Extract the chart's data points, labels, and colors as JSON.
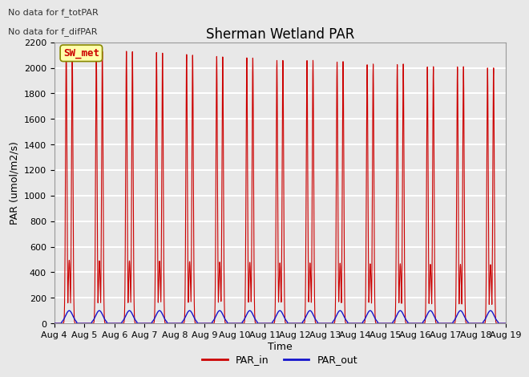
{
  "title": "Sherman Wetland PAR",
  "ylabel": "PAR (umol/m2/s)",
  "xlabel": "Time",
  "ylim": [
    0,
    2200
  ],
  "xlim_days": [
    0,
    15
  ],
  "x_tick_labels": [
    "Aug 4",
    "Aug 5",
    "Aug 6",
    "Aug 7",
    "Aug 8",
    "Aug 9",
    "Aug 10",
    "Aug 11",
    "Aug 12",
    "Aug 13",
    "Aug 14",
    "Aug 15",
    "Aug 16",
    "Aug 17",
    "Aug 18",
    "Aug 19"
  ],
  "par_in_peaks": [
    2150,
    2130,
    2130,
    2120,
    2105,
    2090,
    2080,
    2060,
    2060,
    2050,
    2030,
    2030,
    2010,
    2010,
    2000
  ],
  "par_out_peak": 100,
  "plot_bgcolor": "#e8e8e8",
  "axes_bgcolor": "#e8e8e8",
  "grid_color": "white",
  "legend_label_in": "PAR_in",
  "legend_label_out": "PAR_out",
  "color_in": "#cc0000",
  "color_out": "#1414cc",
  "annotation_text1": "No data for f_totPAR",
  "annotation_text2": "No data for f_difPAR",
  "site_label": "SW_met",
  "title_fontsize": 12,
  "label_fontsize": 9,
  "tick_fontsize": 8,
  "annot_fontsize": 8
}
